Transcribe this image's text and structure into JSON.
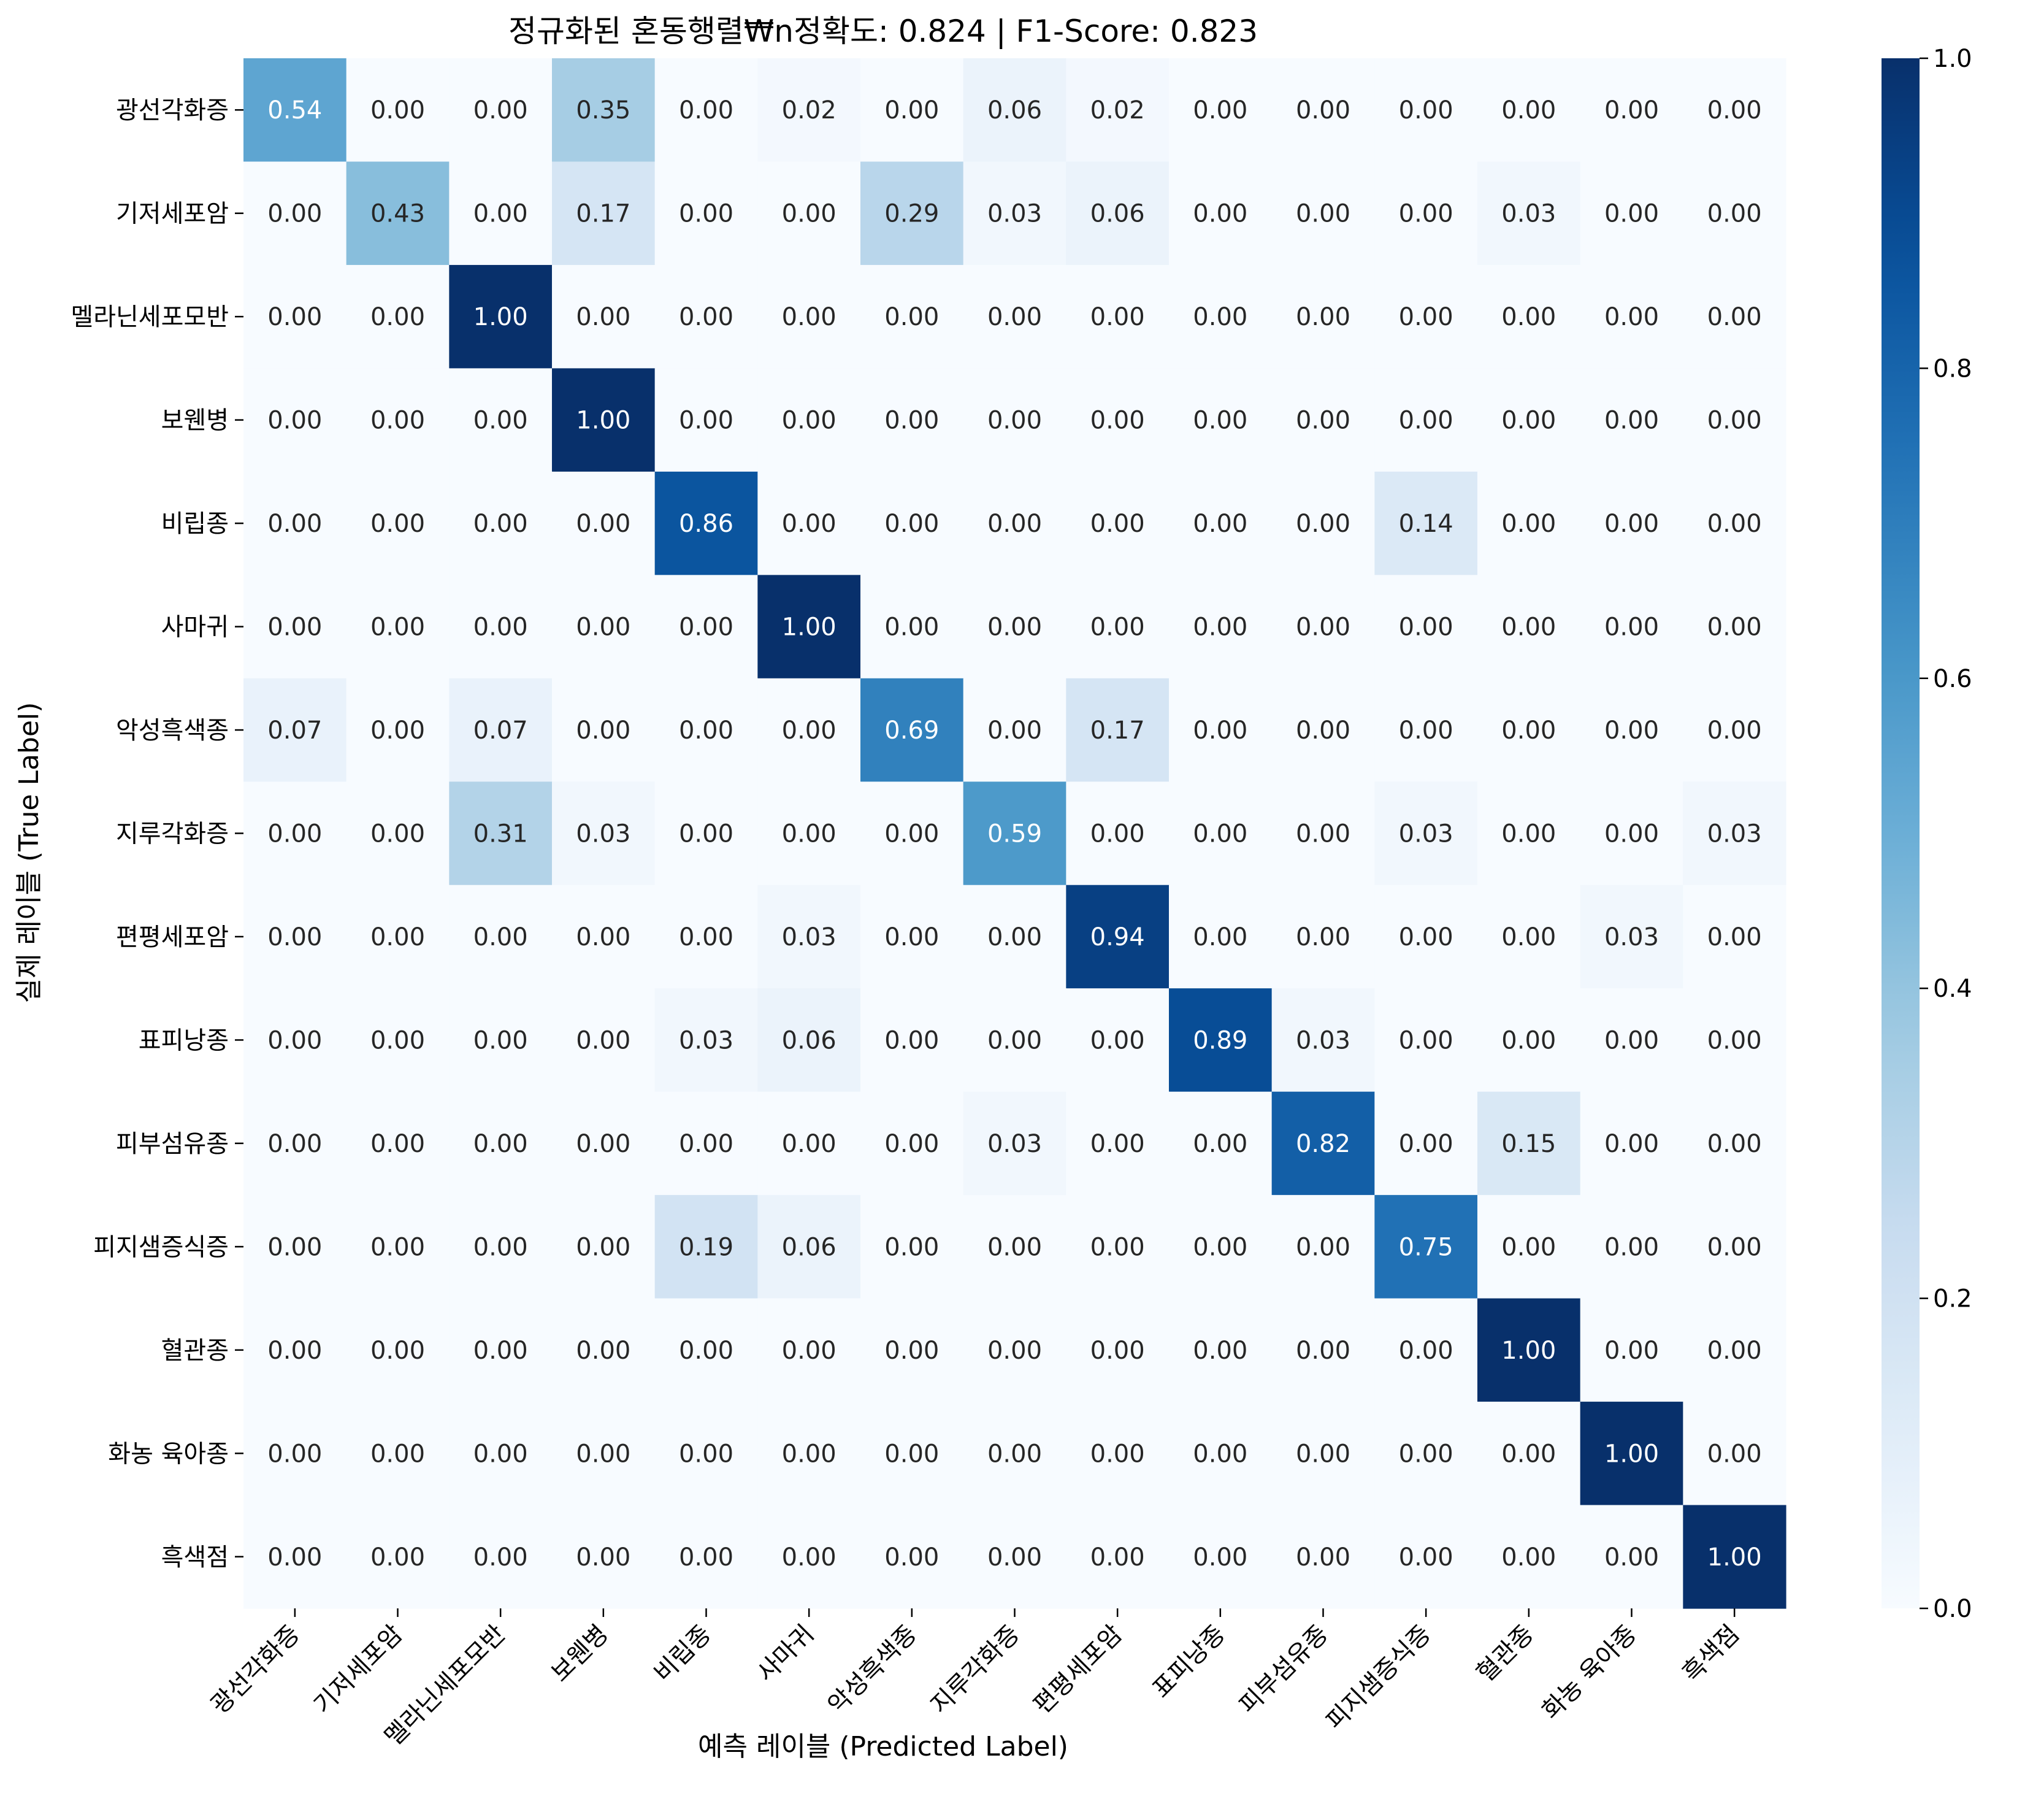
{
  "chart_data": {
    "type": "heatmap",
    "title": "정규화된 혼동행렬₩n정확도: 0.824 | F1-Score: 0.823",
    "xlabel": "예측 레이블 (Predicted Label)",
    "ylabel": "실제 레이블 (True Label)",
    "row_labels": [
      "광선각화증",
      "기저세포암",
      "멜라닌세포모반",
      "보웬병",
      "비립종",
      "사마귀",
      "악성흑색종",
      "지루각화증",
      "편평세포암",
      "표피낭종",
      "피부섬유종",
      "피지샘증식증",
      "혈관종",
      "화농 육아종",
      "흑색점"
    ],
    "col_labels": [
      "광선각화증",
      "기저세포암",
      "멜라닌세포모반",
      "보웬병",
      "비립종",
      "사마귀",
      "악성흑색종",
      "지루각화증",
      "편평세포암",
      "표피낭종",
      "피부섬유종",
      "피지샘증식증",
      "혈관종",
      "화농 육아종",
      "흑색점"
    ],
    "values": [
      [
        0.54,
        0.0,
        0.0,
        0.35,
        0.0,
        0.02,
        0.0,
        0.06,
        0.02,
        0.0,
        0.0,
        0.0,
        0.0,
        0.0,
        0.0
      ],
      [
        0.0,
        0.43,
        0.0,
        0.17,
        0.0,
        0.0,
        0.29,
        0.03,
        0.06,
        0.0,
        0.0,
        0.0,
        0.03,
        0.0,
        0.0
      ],
      [
        0.0,
        0.0,
        1.0,
        0.0,
        0.0,
        0.0,
        0.0,
        0.0,
        0.0,
        0.0,
        0.0,
        0.0,
        0.0,
        0.0,
        0.0
      ],
      [
        0.0,
        0.0,
        0.0,
        1.0,
        0.0,
        0.0,
        0.0,
        0.0,
        0.0,
        0.0,
        0.0,
        0.0,
        0.0,
        0.0,
        0.0
      ],
      [
        0.0,
        0.0,
        0.0,
        0.0,
        0.86,
        0.0,
        0.0,
        0.0,
        0.0,
        0.0,
        0.0,
        0.14,
        0.0,
        0.0,
        0.0
      ],
      [
        0.0,
        0.0,
        0.0,
        0.0,
        0.0,
        1.0,
        0.0,
        0.0,
        0.0,
        0.0,
        0.0,
        0.0,
        0.0,
        0.0,
        0.0
      ],
      [
        0.07,
        0.0,
        0.07,
        0.0,
        0.0,
        0.0,
        0.69,
        0.0,
        0.17,
        0.0,
        0.0,
        0.0,
        0.0,
        0.0,
        0.0
      ],
      [
        0.0,
        0.0,
        0.31,
        0.03,
        0.0,
        0.0,
        0.0,
        0.59,
        0.0,
        0.0,
        0.0,
        0.03,
        0.0,
        0.0,
        0.03
      ],
      [
        0.0,
        0.0,
        0.0,
        0.0,
        0.0,
        0.03,
        0.0,
        0.0,
        0.94,
        0.0,
        0.0,
        0.0,
        0.0,
        0.03,
        0.0
      ],
      [
        0.0,
        0.0,
        0.0,
        0.0,
        0.03,
        0.06,
        0.0,
        0.0,
        0.0,
        0.89,
        0.03,
        0.0,
        0.0,
        0.0,
        0.0
      ],
      [
        0.0,
        0.0,
        0.0,
        0.0,
        0.0,
        0.0,
        0.0,
        0.03,
        0.0,
        0.0,
        0.82,
        0.0,
        0.15,
        0.0,
        0.0
      ],
      [
        0.0,
        0.0,
        0.0,
        0.0,
        0.19,
        0.06,
        0.0,
        0.0,
        0.0,
        0.0,
        0.0,
        0.75,
        0.0,
        0.0,
        0.0
      ],
      [
        0.0,
        0.0,
        0.0,
        0.0,
        0.0,
        0.0,
        0.0,
        0.0,
        0.0,
        0.0,
        0.0,
        0.0,
        1.0,
        0.0,
        0.0
      ],
      [
        0.0,
        0.0,
        0.0,
        0.0,
        0.0,
        0.0,
        0.0,
        0.0,
        0.0,
        0.0,
        0.0,
        0.0,
        0.0,
        1.0,
        0.0
      ],
      [
        0.0,
        0.0,
        0.0,
        0.0,
        0.0,
        0.0,
        0.0,
        0.0,
        0.0,
        0.0,
        0.0,
        0.0,
        0.0,
        0.0,
        1.0
      ]
    ],
    "value_format": "0.00",
    "colormap": "Blues",
    "colorbar": {
      "range": [
        0.0,
        1.0
      ],
      "ticks": [
        0.0,
        0.2,
        0.4,
        0.6,
        0.8,
        1.0
      ],
      "tick_labels": [
        "0.0",
        "0.2",
        "0.4",
        "0.6",
        "0.8",
        "1.0"
      ]
    },
    "grid": false,
    "legend": "none"
  }
}
